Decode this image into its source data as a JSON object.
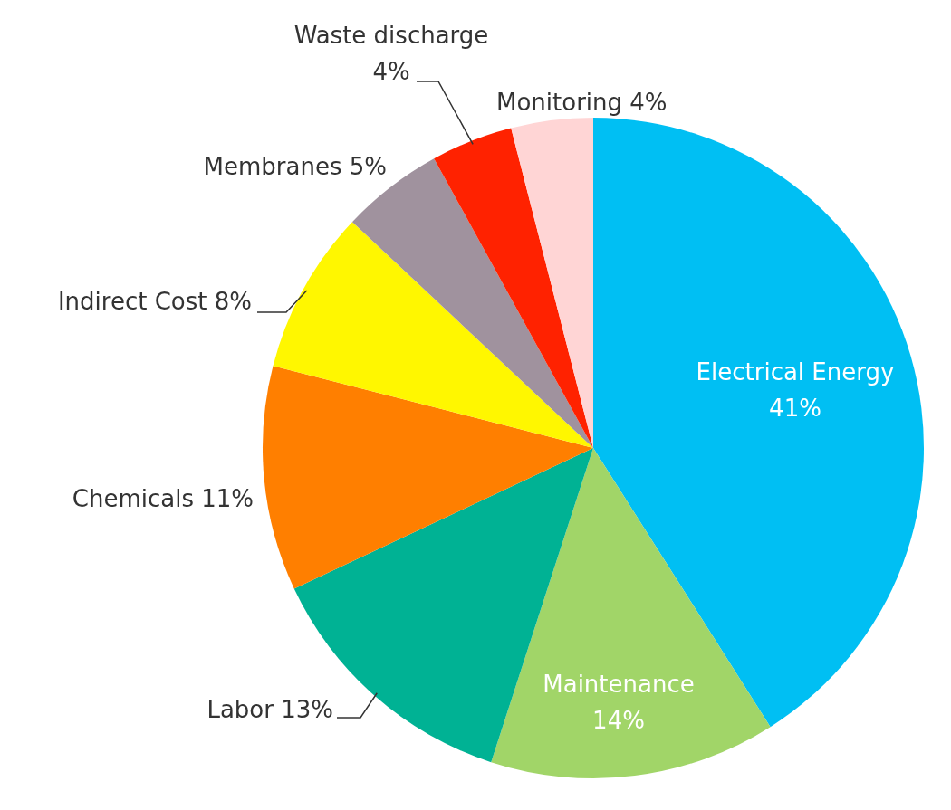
{
  "chart_data": {
    "type": "pie",
    "categories": [
      "Electrical Energy",
      "Maintenance",
      "Labor",
      "Chemicals",
      "Indirect Cost",
      "Membranes",
      "Waste discharge",
      "Monitoring"
    ],
    "values": [
      41,
      14,
      13,
      11,
      8,
      5,
      4,
      4
    ],
    "value_labels": [
      "41%",
      "14%",
      "13%",
      "11%",
      "8%",
      "5%",
      "4%",
      "4%"
    ],
    "colors": [
      "#00bff3",
      "#a1d568",
      "#00b294",
      "#ff7f00",
      "#fff700",
      "#a0929e",
      "#ff2200",
      "#ffd5d5"
    ]
  }
}
